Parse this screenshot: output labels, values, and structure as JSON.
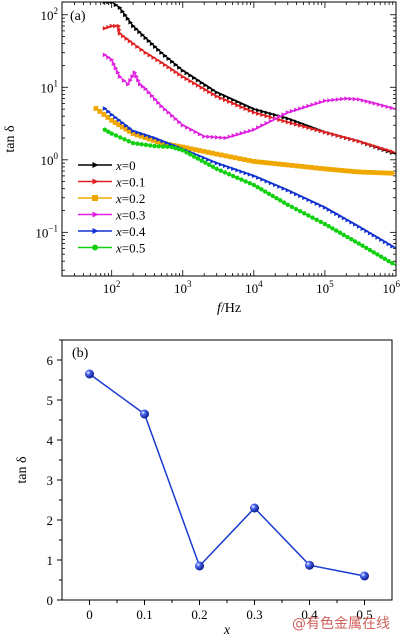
{
  "watermark": "@有色金属在线",
  "chart_data": [
    {
      "type": "line",
      "panel_label": "(a)",
      "xlabel_italic": "f",
      "xlabel_rest": "/Hz",
      "ylabel": "tan δ",
      "xscale": "log",
      "yscale": "log",
      "xlim": [
        20,
        1000000
      ],
      "ylim": [
        0.025,
        150
      ],
      "x_ticks": [
        {
          "value": 100,
          "base": "10",
          "exp": "2"
        },
        {
          "value": 1000,
          "base": "10",
          "exp": "3"
        },
        {
          "value": 10000,
          "base": "10",
          "exp": "4"
        },
        {
          "value": 100000,
          "base": "10",
          "exp": "5"
        },
        {
          "value": 1000000,
          "base": "10",
          "exp": "6"
        }
      ],
      "y_ticks": [
        {
          "value": 0.1,
          "base": "10",
          "exp": "−1"
        },
        {
          "value": 1,
          "base": "10",
          "exp": "0"
        },
        {
          "value": 10,
          "base": "10",
          "exp": "1"
        },
        {
          "value": 100,
          "base": "10",
          "exp": "2"
        }
      ],
      "legend_position": "bottom-left",
      "series": [
        {
          "name": "x=0",
          "var": "x",
          "rest": "=0",
          "color": "#000000",
          "x": [
            80,
            100,
            130,
            200,
            300,
            500,
            1000,
            3000,
            10000,
            30000,
            100000,
            300000,
            1000000
          ],
          "y": [
            150,
            150,
            125,
            70,
            48,
            30,
            17,
            8.5,
            5,
            3.7,
            2.4,
            1.8,
            1.2
          ]
        },
        {
          "name": "x=0.1",
          "var": "x",
          "rest": "=0.1",
          "color": "#e02020",
          "x": [
            80,
            100,
            125,
            130,
            200,
            300,
            500,
            1000,
            3000,
            10000,
            30000,
            100000,
            300000,
            1000000
          ],
          "y": [
            65,
            70,
            70,
            55,
            40,
            30,
            22,
            14,
            7.5,
            4.5,
            3.3,
            2.4,
            1.8,
            1.25
          ]
        },
        {
          "name": "x=0.2",
          "var": "x",
          "rest": "=0.2",
          "color": "#f0a800",
          "x": [
            60,
            100,
            200,
            500,
            1000,
            3000,
            10000,
            30000,
            100000,
            300000,
            1000000
          ],
          "y": [
            5.1,
            3.5,
            2.3,
            1.7,
            1.5,
            1.2,
            0.95,
            0.85,
            0.75,
            0.68,
            0.65
          ]
        },
        {
          "name": "x=0.3",
          "var": "x",
          "rest": "=0.3",
          "color": "#e020e0",
          "x": [
            80,
            100,
            130,
            170,
            210,
            250,
            300,
            500,
            1000,
            2000,
            4000,
            10000,
            30000,
            100000,
            200000,
            300000,
            500000,
            1000000
          ],
          "y": [
            28,
            24,
            14,
            11,
            16,
            11,
            9.5,
            5.5,
            3,
            2.1,
            2,
            2.6,
            4.5,
            6.5,
            7,
            6.8,
            6,
            5
          ]
        },
        {
          "name": "x=0.4",
          "var": "x",
          "rest": "=0.4",
          "color": "#1030d0",
          "x": [
            80,
            100,
            200,
            400,
            1000,
            3000,
            10000,
            30000,
            100000,
            300000,
            1000000
          ],
          "y": [
            5.1,
            4.2,
            2.5,
            2,
            1.4,
            0.9,
            0.6,
            0.38,
            0.22,
            0.12,
            0.06
          ]
        },
        {
          "name": "x=0.5",
          "var": "x",
          "rest": "=0.5",
          "color": "#10d010",
          "x": [
            80,
            100,
            200,
            400,
            700,
            1000,
            3000,
            10000,
            30000,
            100000,
            300000,
            1000000
          ],
          "y": [
            2.6,
            2.3,
            1.7,
            1.55,
            1.5,
            1.35,
            0.75,
            0.45,
            0.24,
            0.13,
            0.07,
            0.035
          ]
        }
      ]
    },
    {
      "type": "line",
      "panel_label": "(b)",
      "xlabel": "x",
      "ylabel": "tan δ",
      "xlim": [
        -0.05,
        0.55
      ],
      "ylim": [
        0,
        6.5
      ],
      "x_ticks": [
        "0",
        "0.1",
        "0.2",
        "0.3",
        "0.4",
        "0.5"
      ],
      "y_ticks": [
        "0",
        "1",
        "2",
        "3",
        "4",
        "5",
        "6"
      ],
      "color": "#1a3ad0",
      "x": [
        0,
        0.1,
        0.2,
        0.3,
        0.4,
        0.5
      ],
      "y": [
        5.65,
        4.65,
        0.85,
        2.3,
        0.87,
        0.6
      ]
    }
  ]
}
